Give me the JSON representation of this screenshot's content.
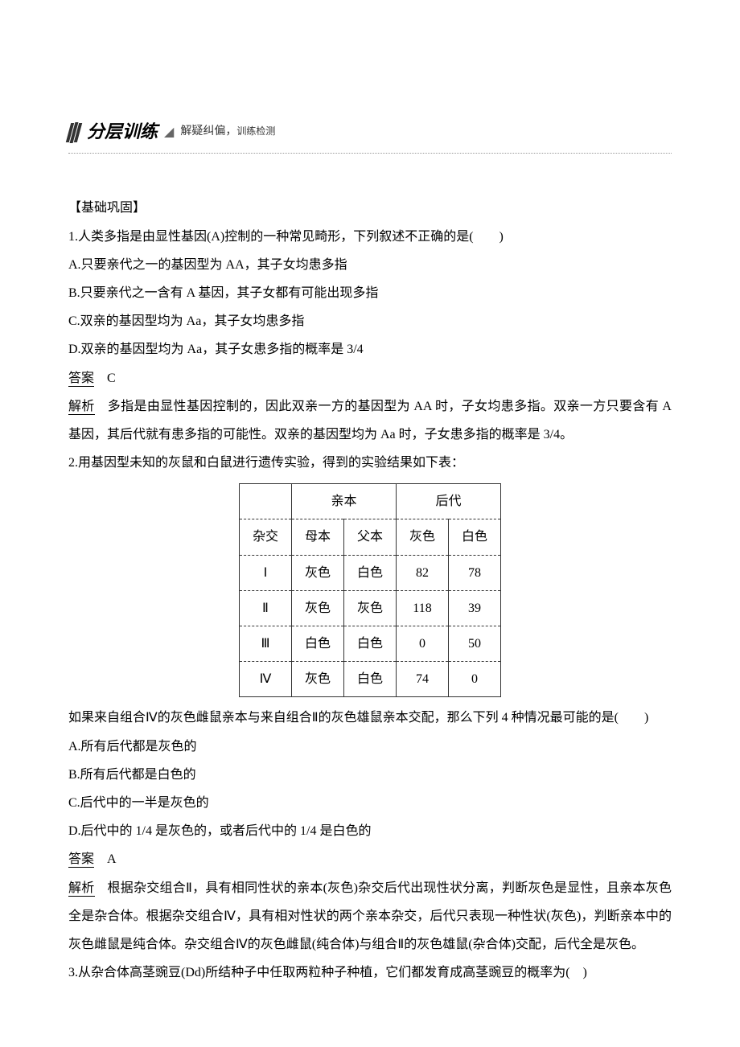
{
  "header": {
    "title": "分层训练",
    "subtitle_1": "解疑纠偏，",
    "subtitle_2": "训练检测"
  },
  "section_label": "【基础巩固】",
  "q1": {
    "stem": "1.人类多指是由显性基因(A)控制的一种常见畸形，下列叙述不正确的是(　　)",
    "options": {
      "A": "A.只要亲代之一的基因型为 AA，其子女均患多指",
      "B": "B.只要亲代之一含有 A 基因，其子女都有可能出现多指",
      "C": "C.双亲的基因型均为 Aa，其子女均患多指",
      "D": "D.双亲的基因型均为 Aa，其子女患多指的概率是 3/4"
    },
    "answer_label": "答案",
    "answer": "C",
    "explain_label": "解析",
    "explain": "多指是由显性基因控制的，因此双亲一方的基因型为 AA 时，子女均患多指。双亲一方只要含有 A 基因，其后代就有患多指的可能性。双亲的基因型均为 Aa 时，子女患多指的概率是 3/4。"
  },
  "q2": {
    "stem": "2.用基因型未知的灰鼠和白鼠进行遗传实验，得到的实验结果如下表：",
    "table": {
      "header_group_1": "亲本",
      "header_group_2": "后代",
      "col0": "杂交",
      "col1": "母本",
      "col2": "父本",
      "col3": "灰色",
      "col4": "白色",
      "rows": [
        {
          "c0": "Ⅰ",
          "c1": "灰色",
          "c2": "白色",
          "c3": "82",
          "c4": "78"
        },
        {
          "c0": "Ⅱ",
          "c1": "灰色",
          "c2": "灰色",
          "c3": "118",
          "c4": "39"
        },
        {
          "c0": "Ⅲ",
          "c1": "白色",
          "c2": "白色",
          "c3": "0",
          "c4": "50"
        },
        {
          "c0": "Ⅳ",
          "c1": "灰色",
          "c2": "白色",
          "c3": "74",
          "c4": "0"
        }
      ],
      "col_widths": [
        "70px",
        "70px",
        "70px",
        "70px",
        "70px"
      ],
      "border_color": "#333333",
      "font_size": 16
    },
    "post_table": "如果来自组合Ⅳ的灰色雌鼠亲本与来自组合Ⅱ的灰色雄鼠亲本交配，那么下列 4 种情况最可能的是(　　)",
    "options": {
      "A": "A.所有后代都是灰色的",
      "B": "B.所有后代都是白色的",
      "C": "C.后代中的一半是灰色的",
      "D": "D.后代中的 1/4 是灰色的，或者后代中的 1/4 是白色的"
    },
    "answer_label": "答案",
    "answer": "A",
    "explain_label": "解析",
    "explain": "根据杂交组合Ⅱ，具有相同性状的亲本(灰色)杂交后代出现性状分离，判断灰色是显性，且亲本灰色全是杂合体。根据杂交组合Ⅳ，具有相对性状的两个亲本杂交，后代只表现一种性状(灰色)，判断亲本中的灰色雌鼠是纯合体。杂交组合Ⅳ的灰色雌鼠(纯合体)与组合Ⅱ的灰色雄鼠(杂合体)交配，后代全是灰色。"
  },
  "q3": {
    "stem": "3.从杂合体高茎豌豆(Dd)所结种子中任取两粒种子种植，它们都发育成高茎豌豆的概率为(　)"
  },
  "styling": {
    "body_width": 920,
    "body_bg": "#ffffff",
    "body_font": "SimSun",
    "body_fontsize": 16,
    "body_lineheight": 2.2,
    "text_color": "#000000"
  }
}
